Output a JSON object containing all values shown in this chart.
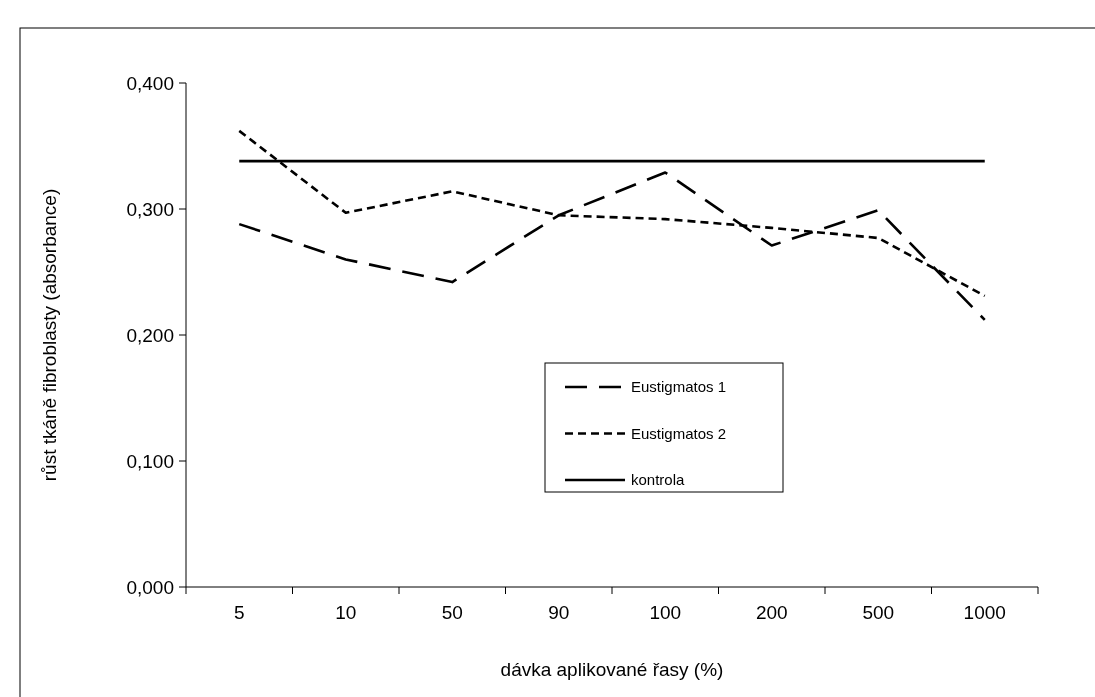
{
  "chart_data": {
    "type": "line",
    "xlabel": "dávka aplikované řasy (%)",
    "ylabel": "růst tkáně fibroblasty (absorbance)",
    "categories": [
      "5",
      "10",
      "50",
      "90",
      "100",
      "200",
      "500",
      "1000"
    ],
    "ylim": [
      0,
      0.4
    ],
    "yticks": [
      {
        "value": 0,
        "label": "0,000"
      },
      {
        "value": 0.1,
        "label": "0,100"
      },
      {
        "value": 0.2,
        "label": "0,200"
      },
      {
        "value": 0.3,
        "label": "0,300"
      },
      {
        "value": 0.4,
        "label": "0,400"
      }
    ],
    "grid": false,
    "legend": "bottom",
    "marker": "none",
    "series": [
      {
        "name": "Eustigmatos 1",
        "color": "#000000",
        "line_style": "dashed",
        "values": [
          0.288,
          0.26,
          0.242,
          0.295,
          0.329,
          0.271,
          0.299,
          0.212
        ]
      },
      {
        "name": "Eustigmatos 2",
        "color": "#000000",
        "line_style": "dotted",
        "values": [
          0.362,
          0.297,
          0.314,
          0.295,
          0.292,
          0.285,
          0.277,
          0.231
        ]
      },
      {
        "name": "kontrola",
        "color": "#000000",
        "line_style": "solid",
        "values": [
          0.338,
          0.338,
          0.338,
          0.338,
          0.338,
          0.338,
          0.338,
          0.338
        ]
      }
    ]
  }
}
